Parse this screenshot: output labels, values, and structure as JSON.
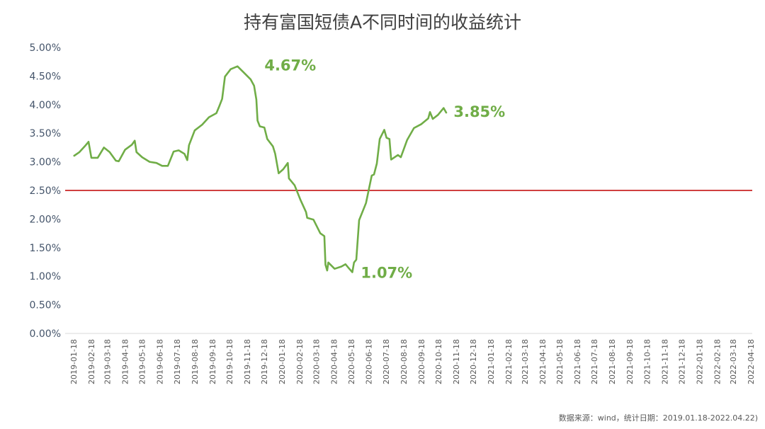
{
  "chart_data": {
    "type": "line",
    "title": "持有富国短债A不同时间的收益统计",
    "xlabel": "",
    "ylabel": "",
    "ylim": [
      0,
      5
    ],
    "y_ticks": [
      "0.00%",
      "0.50%",
      "1.00%",
      "1.50%",
      "2.00%",
      "2.50%",
      "3.00%",
      "3.50%",
      "4.00%",
      "4.50%",
      "5.00%"
    ],
    "x_ticks": [
      "2019-01-18",
      "2019-02-18",
      "2019-03-18",
      "2019-04-18",
      "2019-05-18",
      "2019-06-18",
      "2019-07-18",
      "2019-08-18",
      "2019-09-18",
      "2019-10-18",
      "2019-11-18",
      "2019-12-18",
      "2020-01-18",
      "2020-02-18",
      "2020-03-18",
      "2020-04-18",
      "2020-05-18",
      "2020-06-18",
      "2020-07-18",
      "2020-08-18",
      "2020-09-18",
      "2020-10-18",
      "2020-11-18",
      "2020-12-18",
      "2021-01-18",
      "2021-02-18",
      "2021-03-18",
      "2021-04-18",
      "2021-05-18",
      "2021-06-18",
      "2021-07-18",
      "2021-08-18",
      "2021-09-18",
      "2021-10-18",
      "2021-11-18",
      "2021-12-18",
      "2022-01-18",
      "2022-02-18",
      "2022-03-18",
      "2022-04-18"
    ],
    "grid": false,
    "reference_line": {
      "value": 2.5,
      "color": "#c00000"
    },
    "series": [
      {
        "color": "#70ad47",
        "points": [
          [
            "2019-01-18",
            3.1
          ],
          [
            "2019-01-28",
            3.17
          ],
          [
            "2019-02-08",
            3.29
          ],
          [
            "2019-02-13",
            3.35
          ],
          [
            "2019-02-18",
            3.07
          ],
          [
            "2019-03-01",
            3.07
          ],
          [
            "2019-03-12",
            3.25
          ],
          [
            "2019-03-22",
            3.17
          ],
          [
            "2019-04-02",
            3.02
          ],
          [
            "2019-04-07",
            3.01
          ],
          [
            "2019-04-18",
            3.21
          ],
          [
            "2019-04-30",
            3.3
          ],
          [
            "2019-05-05",
            3.37
          ],
          [
            "2019-05-08",
            3.17
          ],
          [
            "2019-05-18",
            3.08
          ],
          [
            "2019-05-31",
            3.0
          ],
          [
            "2019-06-12",
            2.98
          ],
          [
            "2019-06-22",
            2.93
          ],
          [
            "2019-07-02",
            2.93
          ],
          [
            "2019-07-12",
            3.18
          ],
          [
            "2019-07-21",
            3.2
          ],
          [
            "2019-07-31",
            3.14
          ],
          [
            "2019-08-05",
            3.03
          ],
          [
            "2019-08-08",
            3.29
          ],
          [
            "2019-08-18",
            3.55
          ],
          [
            "2019-08-31",
            3.65
          ],
          [
            "2019-09-12",
            3.78
          ],
          [
            "2019-09-25",
            3.85
          ],
          [
            "2019-09-30",
            3.97
          ],
          [
            "2019-10-05",
            4.1
          ],
          [
            "2019-10-10",
            4.49
          ],
          [
            "2019-10-20",
            4.62
          ],
          [
            "2019-11-01",
            4.67
          ],
          [
            "2019-11-11",
            4.57
          ],
          [
            "2019-11-24",
            4.44
          ],
          [
            "2019-11-30",
            4.33
          ],
          [
            "2019-12-04",
            4.09
          ],
          [
            "2019-12-06",
            3.72
          ],
          [
            "2019-12-10",
            3.62
          ],
          [
            "2019-12-18",
            3.6
          ],
          [
            "2019-12-23",
            3.4
          ],
          [
            "2020-01-02",
            3.27
          ],
          [
            "2020-01-06",
            3.14
          ],
          [
            "2020-01-12",
            2.8
          ],
          [
            "2020-01-20",
            2.87
          ],
          [
            "2020-01-28",
            2.98
          ],
          [
            "2020-01-30",
            2.71
          ],
          [
            "2020-02-09",
            2.59
          ],
          [
            "2020-02-19",
            2.34
          ],
          [
            "2020-02-29",
            2.12
          ],
          [
            "2020-03-02",
            2.02
          ],
          [
            "2020-03-13",
            1.99
          ],
          [
            "2020-03-25",
            1.75
          ],
          [
            "2020-04-01",
            1.7
          ],
          [
            "2020-04-03",
            1.2
          ],
          [
            "2020-04-06",
            1.1
          ],
          [
            "2020-04-08",
            1.24
          ],
          [
            "2020-04-19",
            1.13
          ],
          [
            "2020-05-01",
            1.17
          ],
          [
            "2020-05-08",
            1.21
          ],
          [
            "2020-05-14",
            1.14
          ],
          [
            "2020-05-20",
            1.07
          ],
          [
            "2020-05-23",
            1.24
          ],
          [
            "2020-05-27",
            1.29
          ],
          [
            "2020-06-01",
            1.98
          ],
          [
            "2020-06-13",
            2.28
          ],
          [
            "2020-06-23",
            2.76
          ],
          [
            "2020-06-27",
            2.78
          ],
          [
            "2020-07-02",
            2.97
          ],
          [
            "2020-07-07",
            3.4
          ],
          [
            "2020-07-15",
            3.56
          ],
          [
            "2020-07-19",
            3.42
          ],
          [
            "2020-07-24",
            3.4
          ],
          [
            "2020-07-27",
            3.04
          ],
          [
            "2020-08-08",
            3.12
          ],
          [
            "2020-08-13",
            3.08
          ],
          [
            "2020-08-24",
            3.38
          ],
          [
            "2020-09-05",
            3.59
          ],
          [
            "2020-09-18",
            3.66
          ],
          [
            "2020-09-30",
            3.76
          ],
          [
            "2020-10-03",
            3.87
          ],
          [
            "2020-10-08",
            3.75
          ],
          [
            "2020-10-17",
            3.82
          ],
          [
            "2020-10-27",
            3.94
          ],
          [
            "2020-11-01",
            3.85
          ]
        ]
      }
    ],
    "annotations": [
      {
        "text": "4.67%",
        "date": "2019-11-01",
        "value": 4.67
      },
      {
        "text": "1.07%",
        "date": "2020-05-20",
        "value": 1.07
      },
      {
        "text": "3.85%",
        "date": "2020-11-01",
        "value": 3.85
      }
    ]
  },
  "footer": "数据来源：wind，统计日期：2019.01.18-2022.04.22)"
}
